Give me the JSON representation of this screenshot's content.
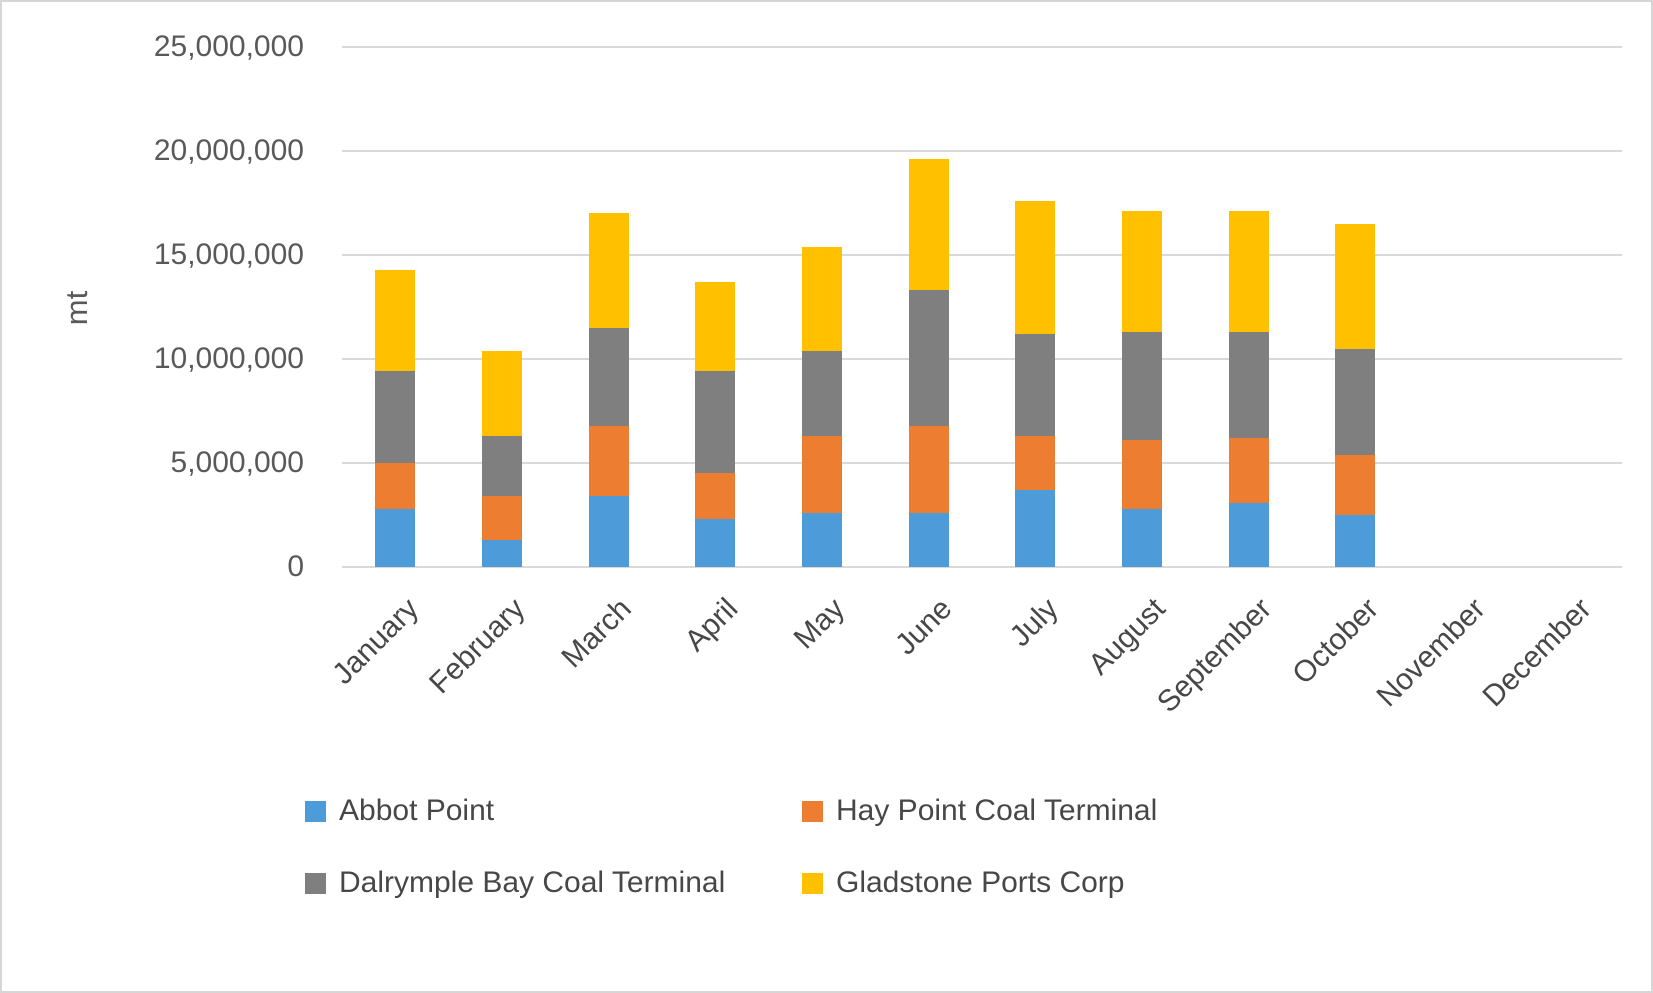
{
  "chart_data": {
    "type": "bar",
    "stacked": true,
    "title": "",
    "xlabel": "",
    "ylabel": "mt",
    "ylim": [
      0,
      25000000
    ],
    "yticks": [
      0,
      5000000,
      10000000,
      15000000,
      20000000,
      25000000
    ],
    "grid": true,
    "legend_position": "bottom",
    "categories": [
      "January",
      "February",
      "March",
      "April",
      "May",
      "June",
      "July",
      "August",
      "September",
      "October",
      "November",
      "December"
    ],
    "series": [
      {
        "name": "Abbot Point",
        "color": "#4D9BD9",
        "values": [
          2800000,
          1300000,
          3400000,
          2300000,
          2600000,
          2600000,
          3700000,
          2800000,
          3100000,
          2500000,
          0,
          0
        ]
      },
      {
        "name": "Hay Point Coal Terminal",
        "color": "#ED7D31",
        "values": [
          2200000,
          2100000,
          3400000,
          2200000,
          3700000,
          4200000,
          2600000,
          3300000,
          3100000,
          2900000,
          0,
          0
        ]
      },
      {
        "name": "Dalrymple Bay Coal Terminal",
        "color": "#7F7F7F",
        "values": [
          4400000,
          2900000,
          4700000,
          4900000,
          4100000,
          6500000,
          4900000,
          5200000,
          5100000,
          5100000,
          0,
          0
        ]
      },
      {
        "name": "Gladstone Ports Corp",
        "color": "#FFC000",
        "values": [
          4900000,
          4100000,
          5500000,
          4300000,
          5000000,
          6300000,
          6400000,
          5800000,
          5800000,
          6000000,
          0,
          0
        ]
      }
    ]
  }
}
